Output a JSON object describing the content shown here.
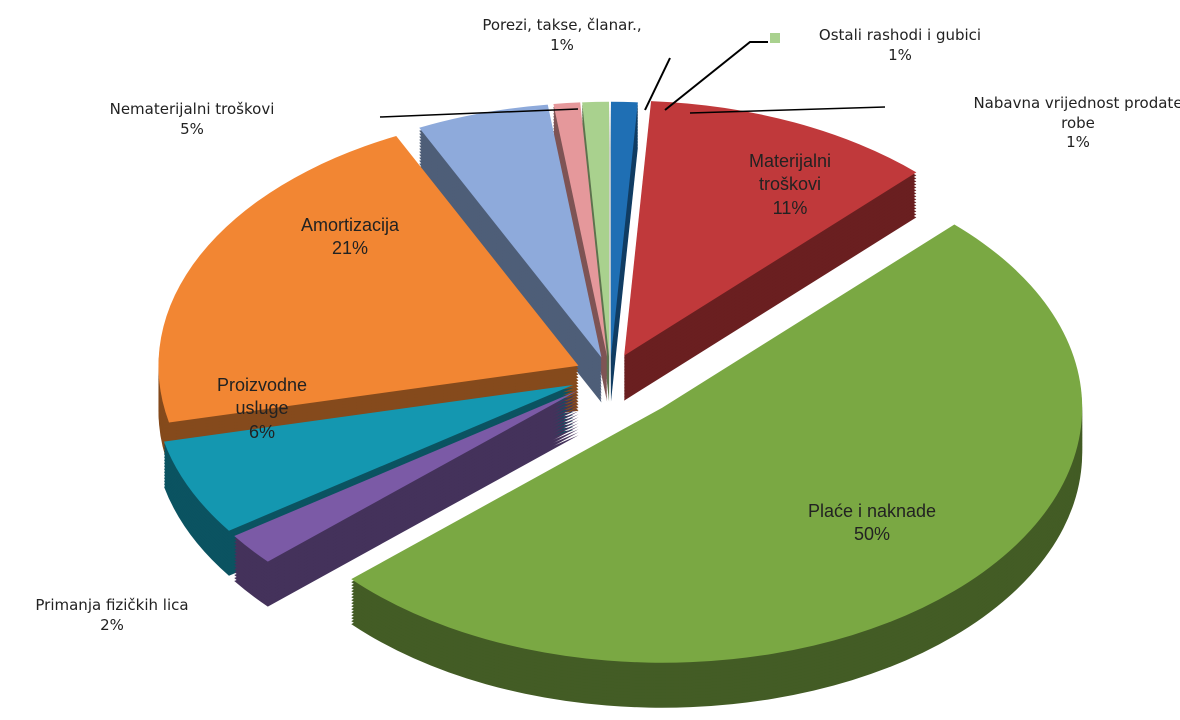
{
  "chart_data": {
    "type": "pie",
    "categories": [
      "Nabavna vrijednost prodate robe",
      "Materijalni troškovi",
      "Plaće i naknade",
      "Primanja fizičkih lica",
      "Proizvodne usluge",
      "Amortizacija",
      "Nematerijalni troškovi",
      "Porezi, takse, članar.,",
      "Ostali rashodi i gubici"
    ],
    "values": [
      1,
      11,
      50,
      2,
      6,
      21,
      5,
      1,
      1
    ],
    "value_labels": [
      "1%",
      "11%",
      "50%",
      "2%",
      "6%",
      "21%",
      "5%",
      "1%",
      "1%"
    ],
    "colors": [
      "#1f6fb4",
      "#c0393b",
      "#7aa843",
      "#7b5aa6",
      "#1497b0",
      "#f28633",
      "#8eaadb",
      "#e5989b",
      "#a9d18e"
    ]
  }
}
